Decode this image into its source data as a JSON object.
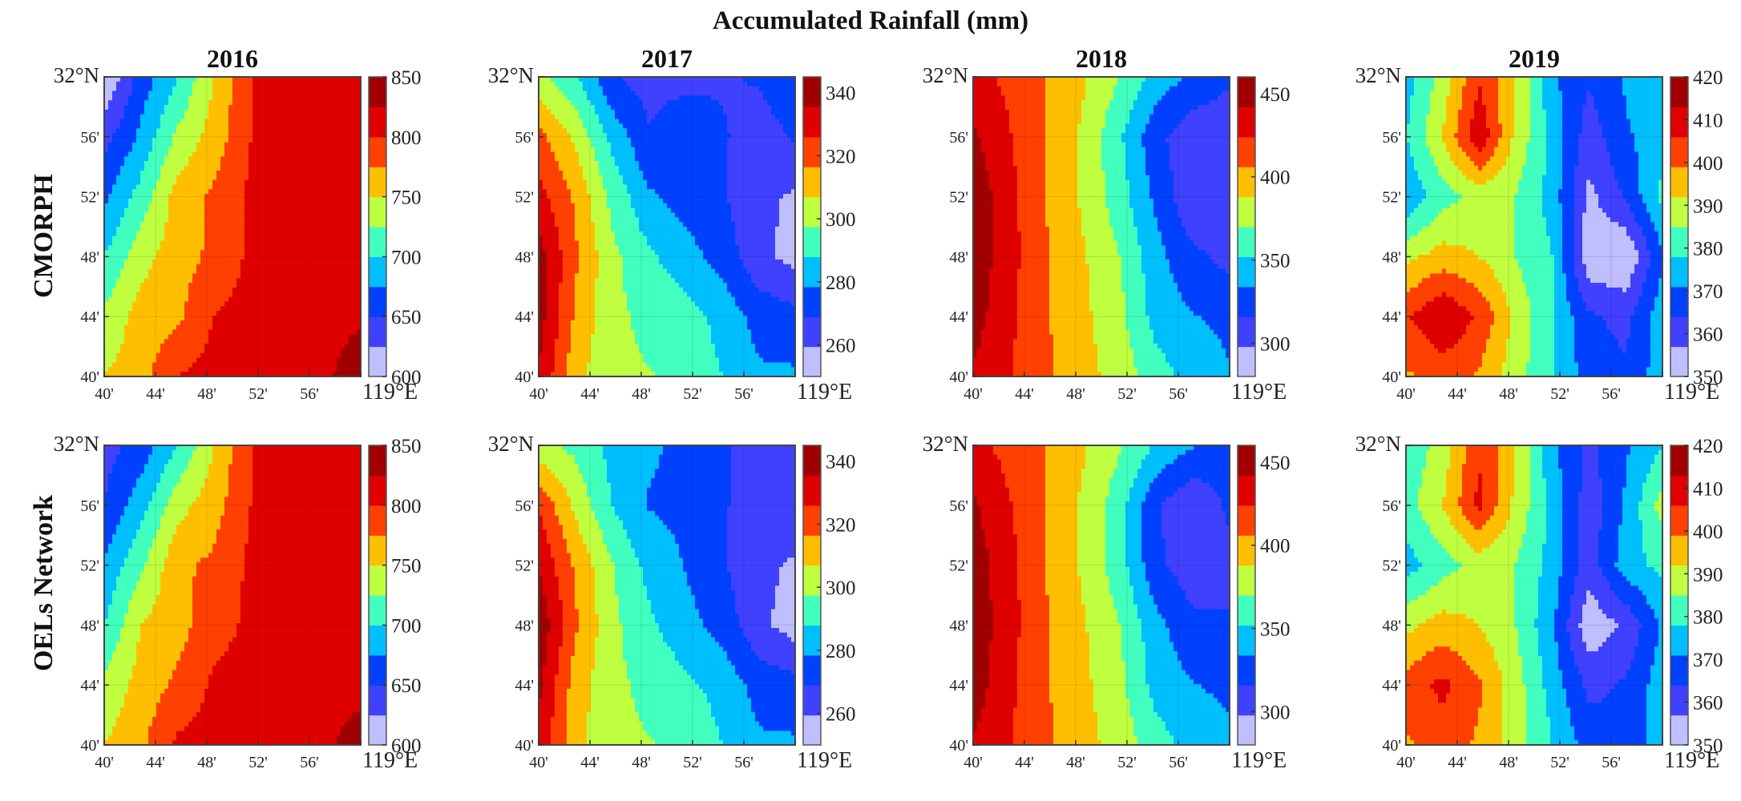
{
  "figure_title": "Accumulated Rainfall (mm)",
  "row_labels": [
    "CMORPH",
    "OELs Network"
  ],
  "chart_data": {
    "type": "heatmap",
    "subtype": "filled-contour",
    "title": "Accumulated Rainfall (mm)",
    "x_ticks": [
      "40'",
      "44'",
      "48'",
      "52'",
      "56'",
      "119°E"
    ],
    "y_ticks": [
      "40'",
      "44'",
      "48'",
      "52'",
      "56'",
      "32°N"
    ],
    "colormap": [
      "#ffffff",
      "#0000ff",
      "#00ffff",
      "#ffff00",
      "#ff0000",
      "#800000"
    ],
    "panels": [
      {
        "year": "2016",
        "range": [
          600,
          850
        ],
        "colorbar_ticks": [
          "600",
          "650",
          "700",
          "750",
          "800",
          "850"
        ],
        "cmorph": [
          [
            600,
            660,
            700,
            750,
            800,
            810,
            815,
            815
          ],
          [
            640,
            680,
            730,
            760,
            800,
            810,
            815,
            815
          ],
          [
            670,
            710,
            760,
            780,
            805,
            812,
            815,
            815
          ],
          [
            700,
            740,
            765,
            780,
            805,
            812,
            815,
            815
          ],
          [
            730,
            760,
            770,
            800,
            810,
            815,
            815,
            820
          ],
          [
            750,
            765,
            800,
            810,
            812,
            815,
            818,
            845
          ]
        ],
        "oels": [
          [
            640,
            660,
            700,
            750,
            800,
            810,
            815,
            815
          ],
          [
            650,
            690,
            740,
            765,
            800,
            810,
            815,
            815
          ],
          [
            680,
            720,
            770,
            780,
            805,
            812,
            815,
            815
          ],
          [
            700,
            750,
            765,
            790,
            805,
            812,
            815,
            815
          ],
          [
            730,
            760,
            780,
            805,
            810,
            815,
            815,
            815
          ],
          [
            750,
            770,
            805,
            810,
            812,
            815,
            818,
            840
          ]
        ]
      },
      {
        "year": "2017",
        "range": [
          250,
          345
        ],
        "colorbar_ticks": [
          "260",
          "280",
          "300",
          "320",
          "340"
        ],
        "cmorph": [
          [
            300,
            290,
            270,
            265,
            265,
            268,
            270,
            275
          ],
          [
            320,
            305,
            285,
            270,
            278,
            270,
            265,
            270
          ],
          [
            330,
            315,
            295,
            280,
            275,
            270,
            262,
            258
          ],
          [
            340,
            318,
            300,
            290,
            282,
            275,
            262,
            256
          ],
          [
            340,
            315,
            300,
            295,
            292,
            285,
            275,
            272
          ],
          [
            335,
            310,
            300,
            298,
            295,
            288,
            280,
            280
          ]
        ],
        "oels": [
          [
            300,
            295,
            285,
            280,
            276,
            270,
            265,
            268
          ],
          [
            325,
            305,
            288,
            278,
            276,
            270,
            265,
            268
          ],
          [
            335,
            315,
            298,
            285,
            278,
            270,
            262,
            258
          ],
          [
            343,
            318,
            300,
            290,
            282,
            275,
            262,
            255
          ],
          [
            338,
            312,
            300,
            295,
            290,
            285,
            275,
            272
          ],
          [
            333,
            310,
            300,
            298,
            295,
            288,
            280,
            280
          ]
        ]
      },
      {
        "year": "2018",
        "range": [
          280,
          460
        ],
        "colorbar_ticks": [
          "300",
          "350",
          "400",
          "450"
        ],
        "cmorph": [
          [
            430,
            420,
            405,
            390,
            370,
            345,
            330,
            320
          ],
          [
            445,
            425,
            405,
            385,
            355,
            320,
            305,
            300
          ],
          [
            455,
            430,
            405,
            385,
            360,
            330,
            300,
            305
          ],
          [
            455,
            430,
            408,
            390,
            370,
            340,
            320,
            310
          ],
          [
            450,
            428,
            408,
            392,
            375,
            345,
            335,
            330
          ],
          [
            440,
            425,
            408,
            395,
            380,
            360,
            345,
            335
          ]
        ],
        "oels": [
          [
            430,
            418,
            405,
            390,
            372,
            350,
            335,
            325
          ],
          [
            445,
            425,
            405,
            385,
            360,
            318,
            300,
            320
          ],
          [
            452,
            430,
            405,
            385,
            360,
            320,
            305,
            310
          ],
          [
            455,
            430,
            408,
            390,
            370,
            340,
            320,
            318
          ],
          [
            452,
            428,
            408,
            392,
            375,
            345,
            335,
            330
          ],
          [
            440,
            425,
            408,
            395,
            380,
            360,
            345,
            338
          ]
        ]
      },
      {
        "year": "2019",
        "range": [
          350,
          420
        ],
        "colorbar_ticks": [
          "350",
          "360",
          "370",
          "380",
          "390",
          "400",
          "410",
          "420"
        ],
        "cmorph": [
          [
            375,
            388,
            405,
            392,
            372,
            365,
            372,
            378
          ],
          [
            378,
            392,
            412,
            390,
            376,
            360,
            370,
            375
          ],
          [
            372,
            382,
            388,
            385,
            375,
            355,
            365,
            380
          ],
          [
            390,
            395,
            392,
            385,
            378,
            352,
            350,
            370
          ],
          [
            405,
            413,
            405,
            390,
            378,
            365,
            362,
            375
          ],
          [
            398,
            402,
            398,
            388,
            378,
            368,
            365,
            375
          ]
        ],
        "oels": [
          [
            380,
            388,
            405,
            392,
            372,
            362,
            370,
            378
          ],
          [
            382,
            392,
            408,
            390,
            376,
            360,
            372,
            388
          ],
          [
            375,
            382,
            388,
            385,
            375,
            360,
            375,
            380
          ],
          [
            390,
            395,
            392,
            385,
            372,
            352,
            358,
            372
          ],
          [
            402,
            408,
            400,
            388,
            375,
            362,
            365,
            375
          ],
          [
            398,
            402,
            398,
            388,
            378,
            368,
            365,
            375
          ]
        ]
      }
    ]
  }
}
